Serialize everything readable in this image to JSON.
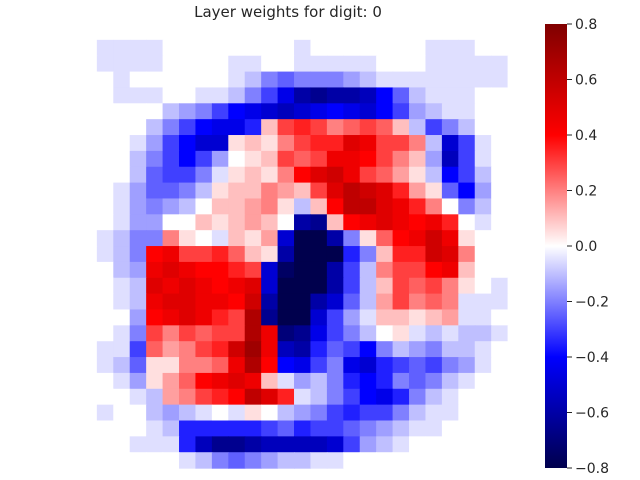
{
  "chart_data": {
    "type": "heatmap",
    "title": "Layer weights for digit: 0",
    "xlabel": "",
    "ylabel": "",
    "grid": false,
    "colormap": "seismic",
    "colorbar": {
      "range": [
        -0.8,
        0.8
      ],
      "ticks": [
        0.8,
        0.6,
        0.4,
        0.2,
        0.0,
        -0.2,
        -0.4,
        -0.6,
        -0.8
      ],
      "tick_labels": [
        "0.8",
        "0.6",
        "0.4",
        "0.2",
        "0.0",
        "−0.2",
        "−0.4",
        "−0.6",
        "−0.8"
      ],
      "colors": {
        "min": "#00004c",
        "mid_low": "#0000ff",
        "center": "#ffffff",
        "mid_high": "#ff0000",
        "max": "#7f0000"
      }
    },
    "rows": 28,
    "cols": 28,
    "values": [
      [
        0,
        0,
        0,
        0,
        0,
        0,
        0,
        0,
        0,
        0,
        0,
        0,
        0,
        0,
        0,
        0,
        0,
        0,
        0,
        0,
        0,
        0,
        0,
        0,
        0,
        0,
        0,
        0
      ],
      [
        0,
        0,
        -0.05,
        -0.05,
        -0.05,
        -0.05,
        0,
        0,
        0,
        0,
        0,
        0,
        0,
        0,
        -0.05,
        0,
        0,
        0,
        0,
        0,
        0,
        0,
        -0.05,
        -0.05,
        -0.05,
        0,
        0,
        0
      ],
      [
        0,
        0,
        -0.05,
        -0.05,
        -0.05,
        -0.05,
        0,
        0,
        0,
        0,
        -0.05,
        -0.05,
        0,
        0,
        -0.05,
        -0.05,
        -0.05,
        -0.05,
        -0.05,
        0,
        0,
        0,
        -0.05,
        -0.05,
        -0.05,
        -0.05,
        -0.05,
        0
      ],
      [
        0,
        0,
        0,
        -0.05,
        0,
        0,
        0,
        0,
        0,
        0,
        -0.05,
        -0.1,
        -0.2,
        -0.25,
        -0.2,
        -0.2,
        -0.2,
        -0.15,
        -0.1,
        -0.05,
        -0.05,
        -0.05,
        -0.05,
        -0.05,
        -0.05,
        -0.05,
        -0.05,
        0
      ],
      [
        0,
        0,
        0,
        -0.05,
        -0.05,
        -0.05,
        0,
        0,
        -0.05,
        -0.05,
        -0.1,
        -0.2,
        -0.3,
        -0.45,
        -0.6,
        -0.65,
        -0.6,
        -0.6,
        -0.55,
        -0.4,
        -0.25,
        -0.1,
        -0.05,
        -0.05,
        -0.05,
        0,
        0,
        0
      ],
      [
        0,
        0,
        0,
        0,
        0,
        0,
        -0.1,
        -0.15,
        -0.2,
        -0.3,
        -0.4,
        -0.45,
        -0.5,
        -0.55,
        -0.5,
        -0.45,
        -0.4,
        -0.45,
        -0.5,
        -0.4,
        -0.3,
        -0.15,
        -0.1,
        -0.05,
        -0.05,
        0,
        0,
        0
      ],
      [
        0,
        0,
        0,
        0,
        0,
        -0.1,
        -0.2,
        -0.3,
        -0.4,
        -0.45,
        -0.45,
        -0.35,
        0.1,
        0.3,
        0.35,
        0.3,
        0.2,
        0.25,
        0.3,
        0.25,
        0.1,
        -0.1,
        -0.3,
        -0.2,
        -0.1,
        0,
        0,
        0
      ],
      [
        0,
        0,
        0,
        0,
        -0.05,
        -0.15,
        -0.3,
        -0.4,
        -0.5,
        -0.5,
        0.05,
        0.1,
        0.05,
        0.2,
        0.3,
        0.35,
        0.35,
        0.5,
        0.45,
        0.3,
        0.3,
        0.2,
        -0.1,
        -0.5,
        -0.3,
        -0.05,
        0,
        0
      ],
      [
        0,
        0,
        0,
        0,
        -0.1,
        -0.2,
        -0.3,
        -0.4,
        -0.3,
        -0.15,
        0,
        0.05,
        0.1,
        0.3,
        0.25,
        0.3,
        0.45,
        0.45,
        0.4,
        0.3,
        0.2,
        0.1,
        -0.15,
        -0.55,
        -0.3,
        -0.05,
        0,
        0
      ],
      [
        0,
        0,
        0,
        0,
        -0.1,
        -0.25,
        -0.3,
        -0.3,
        -0.2,
        -0.05,
        0.05,
        0.1,
        0.05,
        0.2,
        0.4,
        0.5,
        0.55,
        0.45,
        0.3,
        0.25,
        0.15,
        0.05,
        -0.1,
        -0.4,
        -0.3,
        -0.1,
        0,
        0
      ],
      [
        0,
        0,
        0,
        -0.05,
        -0.15,
        -0.25,
        -0.25,
        -0.2,
        -0.1,
        0.05,
        0.1,
        0.1,
        0.2,
        0.15,
        0.1,
        0.3,
        0.5,
        0.6,
        0.55,
        0.5,
        0.35,
        0.15,
        0.05,
        -0.25,
        -0.4,
        -0.15,
        0,
        0
      ],
      [
        0,
        0,
        0,
        -0.05,
        -0.15,
        -0.2,
        -0.15,
        -0.1,
        0,
        0.1,
        0.1,
        0.15,
        0.2,
        0.05,
        -0.1,
        0.1,
        0.4,
        0.6,
        0.6,
        0.5,
        0.45,
        0.35,
        0.2,
        0,
        -0.2,
        -0.1,
        0,
        0
      ],
      [
        0,
        0,
        0,
        -0.05,
        -0.15,
        -0.15,
        0,
        0,
        0.1,
        0.05,
        0.1,
        0.15,
        0.1,
        0,
        -0.6,
        -0.65,
        0.1,
        0.4,
        0.45,
        0.5,
        0.45,
        0.4,
        0.45,
        0.35,
        0,
        -0.05,
        0,
        0
      ],
      [
        0,
        0,
        -0.05,
        -0.1,
        -0.2,
        -0.2,
        0.2,
        0.05,
        0,
        -0.05,
        0.1,
        0.05,
        0.15,
        -0.5,
        -0.8,
        -0.8,
        -0.6,
        -0.2,
        0.05,
        0.25,
        0.4,
        0.45,
        0.55,
        0.45,
        0.05,
        0,
        0,
        0
      ],
      [
        0,
        0,
        -0.05,
        -0.1,
        -0.2,
        0.4,
        0.45,
        0.3,
        0.3,
        0.35,
        0.25,
        0.1,
        0.05,
        -0.6,
        -0.85,
        -0.85,
        -0.85,
        -0.35,
        -0.2,
        0.1,
        0.35,
        0.35,
        0.55,
        0.5,
        0.2,
        0,
        0,
        0
      ],
      [
        0,
        0,
        0,
        -0.1,
        -0.15,
        0.45,
        0.5,
        0.45,
        0.4,
        0.4,
        0.35,
        0.3,
        -0.5,
        -0.75,
        -0.85,
        -0.85,
        -0.6,
        -0.3,
        -0.1,
        0.2,
        0.3,
        0.3,
        0.4,
        0.45,
        0.1,
        0,
        0,
        0
      ],
      [
        0,
        0,
        0,
        -0.05,
        -0.1,
        0.5,
        0.45,
        0.5,
        0.45,
        0.4,
        0.45,
        0.5,
        -0.5,
        -0.8,
        -0.85,
        -0.8,
        -0.6,
        -0.3,
        -0.1,
        0.1,
        0.3,
        0.25,
        0.3,
        0.2,
        0.05,
        0,
        -0.05,
        0
      ],
      [
        0,
        0,
        0,
        -0.05,
        -0.1,
        0.45,
        0.5,
        0.5,
        0.45,
        0.45,
        0.4,
        0.55,
        -0.6,
        -0.85,
        -0.8,
        -0.6,
        -0.5,
        -0.25,
        -0.1,
        0.15,
        0.3,
        0.2,
        0.25,
        0.2,
        -0.05,
        -0.05,
        -0.05,
        0
      ],
      [
        0,
        0,
        0,
        0,
        -0.15,
        0.4,
        0.45,
        0.5,
        0.45,
        0.35,
        0.3,
        0.65,
        -0.65,
        -0.85,
        -0.8,
        -0.5,
        -0.3,
        -0.15,
        -0.05,
        0.1,
        0.1,
        0.05,
        0.1,
        0.15,
        -0.05,
        -0.05,
        0,
        0
      ],
      [
        0,
        0,
        0,
        -0.05,
        -0.2,
        0.3,
        0.2,
        0.3,
        0.25,
        0.3,
        0.3,
        0.65,
        0.45,
        -0.7,
        -0.65,
        -0.45,
        -0.3,
        -0.2,
        -0.1,
        0,
        0.05,
        -0.05,
        -0.1,
        -0.05,
        -0.1,
        -0.1,
        -0.05,
        0
      ],
      [
        0,
        0,
        -0.05,
        -0.05,
        -0.3,
        0.25,
        0.15,
        0.2,
        0.3,
        0.35,
        0.55,
        0.7,
        0.45,
        -0.55,
        -0.6,
        -0.35,
        -0.25,
        -0.3,
        -0.4,
        -0.2,
        -0.1,
        -0.15,
        -0.2,
        -0.1,
        -0.1,
        -0.05,
        0,
        0
      ],
      [
        0,
        0,
        -0.05,
        -0.1,
        -0.25,
        0.05,
        0.05,
        0.2,
        0.2,
        0.25,
        0.45,
        0.65,
        0.4,
        -0.4,
        -0.45,
        -0.3,
        -0.2,
        -0.45,
        -0.5,
        -0.35,
        -0.3,
        -0.25,
        -0.3,
        -0.2,
        -0.15,
        -0.05,
        0,
        0
      ],
      [
        0,
        0,
        0,
        -0.05,
        -0.15,
        0.05,
        0.15,
        0.25,
        0.4,
        0.45,
        0.5,
        0.45,
        0.1,
        -0.05,
        -0.15,
        -0.1,
        -0.2,
        -0.35,
        -0.4,
        -0.35,
        -0.2,
        -0.25,
        -0.2,
        -0.1,
        -0.05,
        0,
        0,
        0
      ],
      [
        0,
        0,
        0,
        0,
        -0.05,
        -0.1,
        0.15,
        0.2,
        0.3,
        0.35,
        0.4,
        0.6,
        0.5,
        0.35,
        -0.05,
        -0.1,
        -0.2,
        -0.3,
        -0.4,
        -0.45,
        -0.35,
        -0.2,
        -0.1,
        -0.05,
        0,
        0,
        0,
        0
      ],
      [
        0,
        0,
        -0.05,
        0,
        0,
        -0.1,
        -0.15,
        -0.1,
        -0.05,
        0,
        -0.05,
        0.05,
        0,
        -0.1,
        -0.15,
        -0.2,
        -0.3,
        -0.35,
        -0.3,
        -0.3,
        -0.2,
        -0.1,
        -0.05,
        -0.05,
        0,
        0,
        0,
        0
      ],
      [
        0,
        0,
        0,
        0,
        0,
        -0.05,
        -0.1,
        -0.35,
        -0.35,
        -0.35,
        -0.35,
        -0.35,
        -0.3,
        -0.25,
        -0.35,
        -0.3,
        -0.3,
        -0.25,
        -0.2,
        -0.15,
        -0.1,
        -0.05,
        -0.05,
        0,
        0,
        0,
        0,
        0
      ],
      [
        0,
        0,
        0,
        0,
        -0.05,
        -0.05,
        -0.05,
        -0.35,
        -0.55,
        -0.65,
        -0.65,
        -0.6,
        -0.55,
        -0.55,
        -0.55,
        -0.55,
        -0.5,
        -0.3,
        -0.15,
        -0.1,
        -0.05,
        0,
        0,
        0,
        0,
        0,
        0,
        0
      ],
      [
        0,
        0,
        0,
        0,
        0,
        0,
        0,
        -0.05,
        -0.1,
        -0.2,
        -0.25,
        -0.2,
        -0.15,
        -0.1,
        -0.1,
        -0.05,
        -0.05,
        0,
        0,
        0,
        0,
        0,
        0,
        0,
        0,
        0,
        0,
        0
      ]
    ]
  }
}
